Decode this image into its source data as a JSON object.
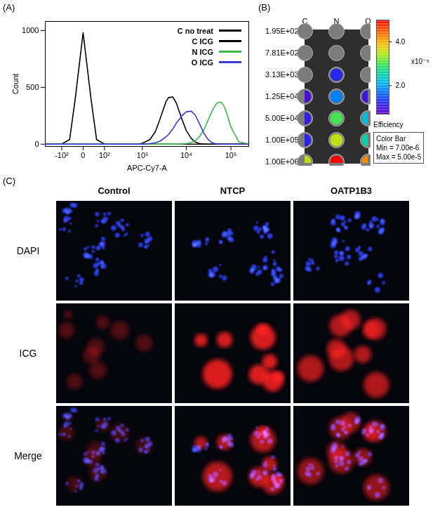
{
  "chart_data": [
    {
      "panel_label": "(A)",
      "type": "line",
      "x_label": "APC-Cy7-A",
      "y_label": "Count",
      "log": "x",
      "x": [
        -300,
        -150,
        -100,
        -50,
        -25,
        0,
        25,
        50,
        100,
        150,
        200,
        300,
        500,
        800,
        1000,
        1500,
        2000,
        2500,
        3000,
        3500,
        4000,
        5000,
        6000,
        8000,
        10000,
        13000,
        16000,
        20000,
        25000,
        30000,
        35000,
        40000,
        45000,
        50000,
        60000,
        70000,
        80000,
        100000,
        150000,
        250000
      ],
      "series": [
        {
          "name": "C no treat",
          "color": "#000000",
          "values": [
            0,
            0,
            2,
            40,
            400,
            980,
            400,
            40,
            2,
            0,
            0,
            0,
            0,
            0,
            0,
            0,
            0,
            0,
            0,
            0,
            0,
            0,
            0,
            0,
            0,
            0,
            0,
            0,
            0,
            0,
            0,
            0,
            0,
            0,
            0,
            0,
            0,
            0,
            0,
            0
          ]
        },
        {
          "name": "C ICG",
          "color": "#000000",
          "values": [
            0,
            0,
            0,
            0,
            0,
            0,
            0,
            0,
            0,
            0,
            0,
            0,
            0,
            2,
            8,
            40,
            110,
            210,
            300,
            375,
            410,
            415,
            360,
            220,
            120,
            50,
            18,
            5,
            1,
            0,
            0,
            0,
            0,
            0,
            0,
            0,
            0,
            0,
            0,
            0
          ]
        },
        {
          "name": "N ICG",
          "color": "#3dbb4a",
          "values": [
            0,
            0,
            0,
            0,
            0,
            0,
            0,
            0,
            0,
            0,
            0,
            0,
            0,
            0,
            0,
            0,
            0,
            0,
            0,
            0,
            0,
            0,
            0,
            2,
            5,
            14,
            32,
            68,
            130,
            200,
            262,
            310,
            345,
            365,
            370,
            335,
            275,
            150,
            20,
            0
          ]
        },
        {
          "name": "O ICG",
          "color": "#3b3bdc",
          "values": [
            0,
            0,
            0,
            0,
            0,
            0,
            0,
            0,
            0,
            0,
            0,
            0,
            0,
            0,
            0,
            4,
            12,
            25,
            45,
            65,
            85,
            135,
            185,
            250,
            285,
            290,
            255,
            175,
            95,
            48,
            22,
            10,
            4,
            2,
            0,
            0,
            0,
            0,
            0,
            0
          ]
        }
      ],
      "xlim": [
        -300,
        250000
      ],
      "xticks": [
        {
          "value": -100,
          "label": "-10²"
        },
        0,
        {
          "value": 100,
          "label": "10²"
        },
        {
          "value": 1000,
          "label": "10³"
        },
        {
          "value": 10000,
          "label": "10⁴"
        },
        {
          "value": 100000,
          "label": "10⁵"
        }
      ],
      "ylim": [
        -20,
        1080
      ],
      "yticks": [
        0,
        500,
        1000
      ],
      "legend": "top-right"
    },
    {
      "panel_label": "(B)",
      "type": "heatmap",
      "x_categories": [
        "C",
        "N",
        "O"
      ],
      "y_categories": [
        "1.95E+02",
        "7.81E+02",
        "3.13E+03",
        "1.25E+04",
        "5.00E+04",
        "1.00E+05",
        "1.00E+06"
      ],
      "values": [
        [
          5e-06,
          5.5e-06,
          5e-06
        ],
        [
          5e-06,
          6e-06,
          5e-06
        ],
        [
          6e-06,
          1.2e-05,
          6.5e-06
        ],
        [
          9e-06,
          1.8e-05,
          1e-05
        ],
        [
          1.1e-05,
          3e-05,
          2.2e-05
        ],
        [
          1.2e-05,
          3.5e-05,
          2.5e-05
        ],
        [
          3.5e-05,
          5e-05,
          4.2e-05
        ]
      ],
      "color_bar": {
        "title": "Efficiency",
        "range": [
          7e-06,
          5e-05
        ],
        "ticks": [
          {
            "value": 2e-05,
            "label": "2.0"
          },
          {
            "value": 4e-05,
            "label": "4.0"
          }
        ],
        "multiplier_label": "x10⁻⁵",
        "box_lines": [
          "Color Bar",
          "Min = 7.00e-6",
          "Max = 5.00e-5"
        ]
      }
    },
    {
      "panel_label": "(C)",
      "type": "image_grid",
      "columns": [
        "Control",
        "NTCP",
        "OATP1B3"
      ],
      "rows": [
        "DAPI",
        "ICG",
        "Merge"
      ]
    }
  ]
}
